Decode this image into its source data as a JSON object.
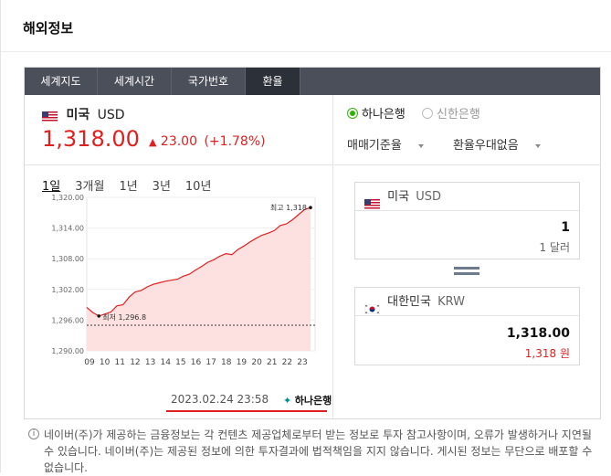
{
  "section_title": "해외정보",
  "tabs": [
    {
      "label": "세계지도",
      "active": false
    },
    {
      "label": "세계시간",
      "active": false
    },
    {
      "label": "국가번호",
      "active": false
    },
    {
      "label": "환율",
      "active": true
    }
  ],
  "currency": {
    "flag": "us-flag-icon",
    "name": "미국",
    "code": "USD",
    "price": "1,318.00",
    "change": "23.00",
    "change_pct": "(+1.78%)",
    "change_icon": "up-triangle-icon"
  },
  "periods": [
    {
      "label": "1일",
      "active": true
    },
    {
      "label": "3개월",
      "active": false
    },
    {
      "label": "1년",
      "active": false
    },
    {
      "label": "3년",
      "active": false
    },
    {
      "label": "10년",
      "active": false
    }
  ],
  "chart_data": {
    "type": "area",
    "x_ticks": [
      "09",
      "10",
      "11",
      "12",
      "13",
      "14",
      "15",
      "16",
      "17",
      "18",
      "19",
      "20",
      "21",
      "22",
      "23"
    ],
    "y_ticks": [
      "1,320.00",
      "1,314.00",
      "1,308.00",
      "1,302.00",
      "1,296.00",
      "1,290.00"
    ],
    "ylim": [
      1290,
      1320
    ],
    "max_label": "최고 1,318",
    "min_label": "최저 1,296.8",
    "baseline_value": 1295.0,
    "series": [
      {
        "values": [
          1298.5,
          1297.5,
          1296.8,
          1297.2,
          1297.6,
          1298.8,
          1299.0,
          1300.5,
          1301.5,
          1301.8,
          1302.5,
          1303.0,
          1303.3,
          1303.6,
          1303.8,
          1304.0,
          1304.6,
          1305.0,
          1305.8,
          1306.5,
          1307.3,
          1307.8,
          1308.5,
          1309.0,
          1308.8,
          1309.8,
          1310.5,
          1311.3,
          1312.0,
          1312.6,
          1313.0,
          1313.5,
          1314.5,
          1314.8,
          1315.6,
          1316.6,
          1317.6,
          1318.0
        ]
      }
    ],
    "colors": {
      "line": "#e02020",
      "fill": "#fde0e0",
      "baseline": "#333333"
    }
  },
  "timestamp": "2023.02.24 23:58",
  "bank_logo_text": "하나은행",
  "banks": [
    {
      "label": "하나은행",
      "selected": true
    },
    {
      "label": "신한은행",
      "selected": false
    }
  ],
  "dropdowns": [
    {
      "label": "매매기준율"
    },
    {
      "label": "환율우대없음"
    }
  ],
  "converter": {
    "from": {
      "flag": "us-flag-icon",
      "name": "미국",
      "code": "USD",
      "value": "1",
      "unit_text": "1 달러"
    },
    "to": {
      "flag": "kr-flag-icon",
      "name": "대한민국",
      "code": "KRW",
      "value": "1,318.00",
      "unit_text": "1,318 원"
    }
  },
  "info_text": "네이버(주)가 제공하는 금융정보는 각 컨텐츠 제공업체로부터 받는 정보로 투자 참고사항이며, 오류가 발생하거나 지연될 수 있습니다. 네이버(주)는 제공된 정보에 의한 투자결과에 법적책임을 지지 않습니다. 게시된 정보는 무단으로 배포할 수 없습니다.",
  "info_icon": "info-icon"
}
